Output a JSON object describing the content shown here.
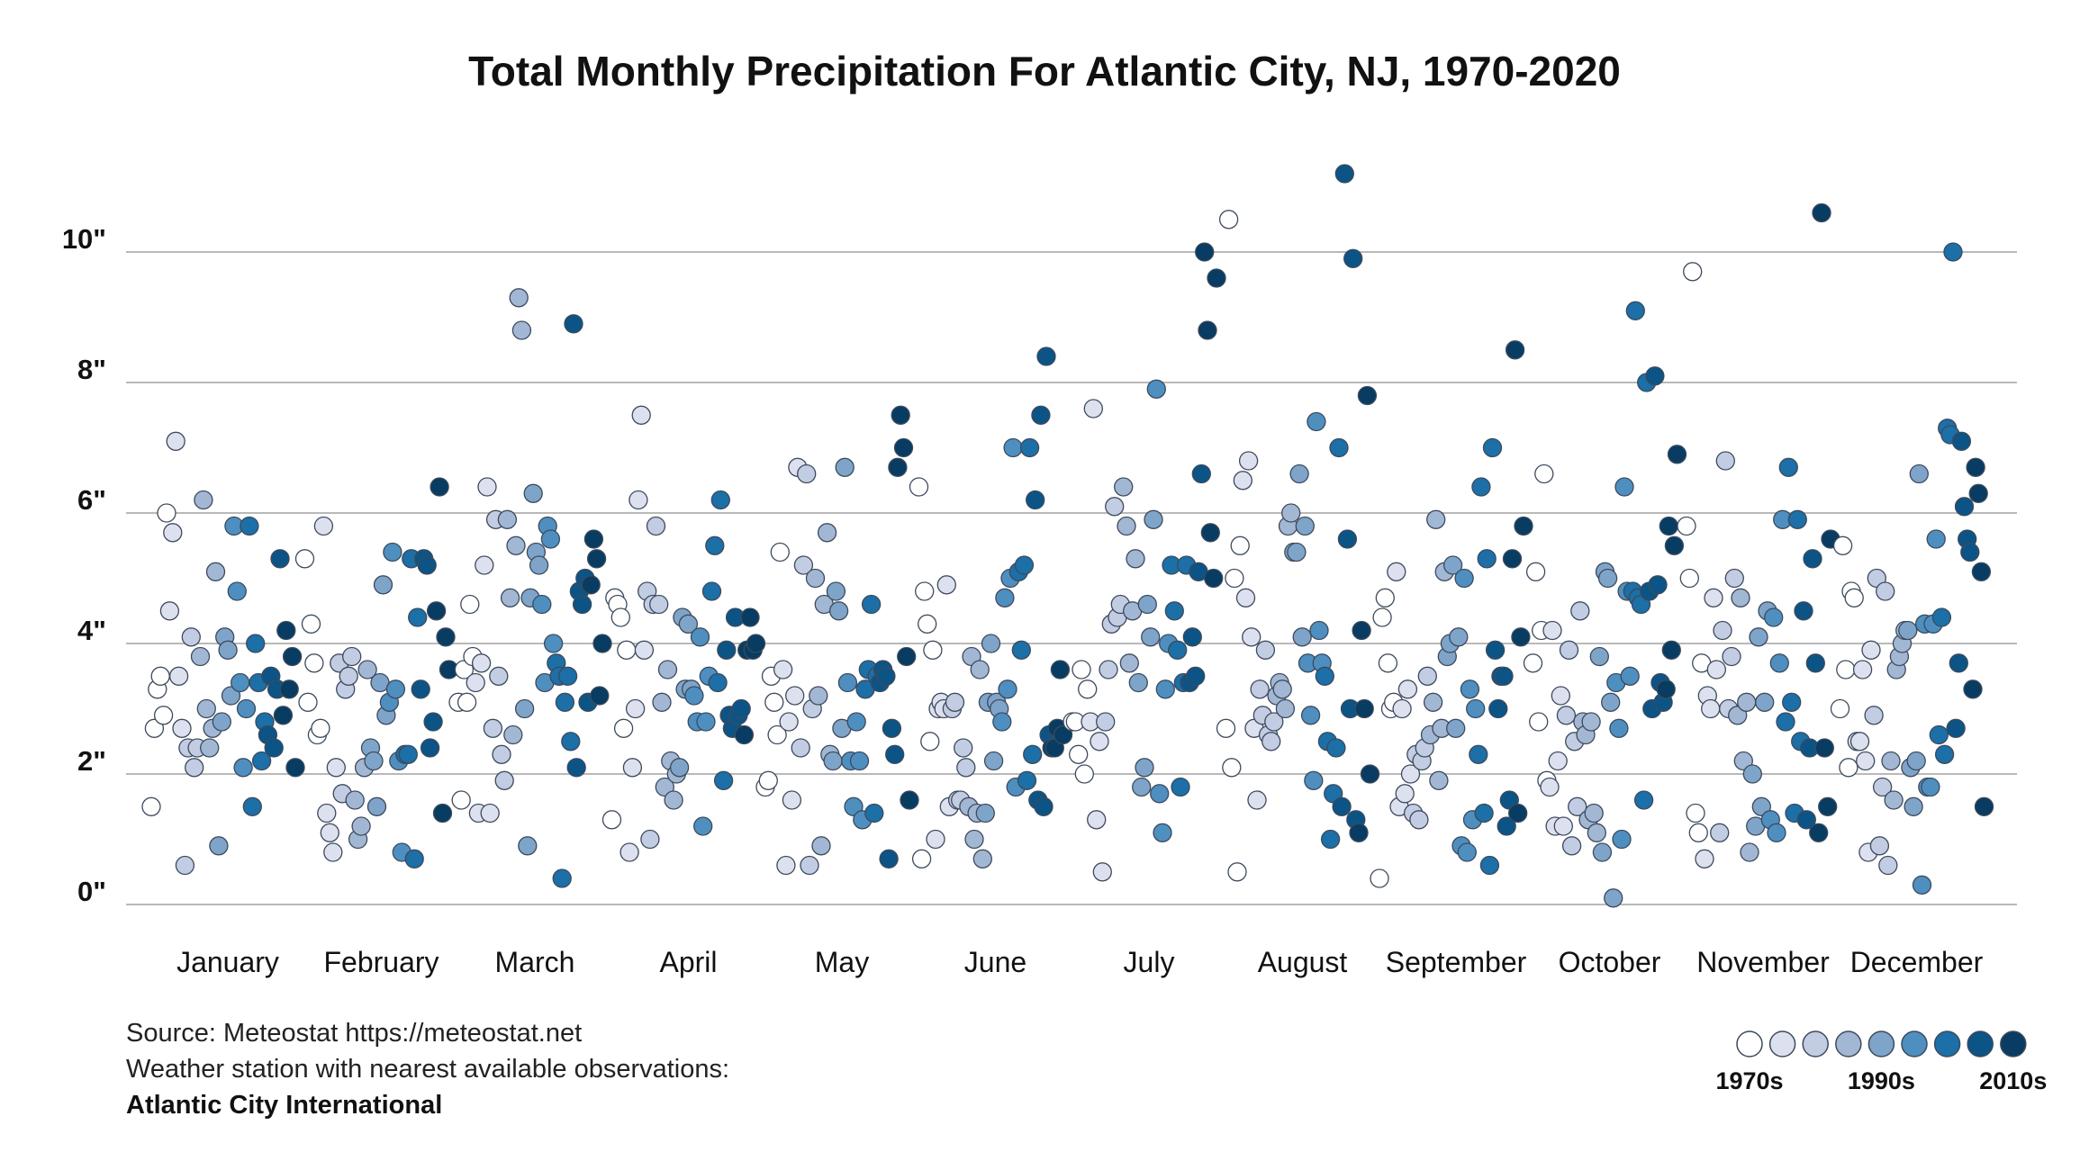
{
  "chart_data": {
    "type": "scatter",
    "title": "Total Monthly Precipitation For Atlantic City, NJ, 1970-2020",
    "xlabel": "",
    "ylabel": "",
    "ylim": [
      0,
      11.5
    ],
    "y_ticks": [
      {
        "value": 0,
        "label": "0\""
      },
      {
        "value": 2,
        "label": "2\""
      },
      {
        "value": 4,
        "label": "4\""
      },
      {
        "value": 6,
        "label": "6\""
      },
      {
        "value": 8,
        "label": "8\""
      },
      {
        "value": 10,
        "label": "10\""
      }
    ],
    "categories": [
      "January",
      "February",
      "March",
      "April",
      "May",
      "June",
      "July",
      "August",
      "September",
      "October",
      "November",
      "December"
    ],
    "decade_colors": [
      "#ffffff",
      "#dde1ef",
      "#c2cce2",
      "#a2b7d4",
      "#7fa4c9",
      "#4e8fc0",
      "#1c6fa7",
      "#0c5486",
      "#083c62"
    ],
    "legend": {
      "labels": [
        "1970s",
        "1990s",
        "2010s"
      ]
    },
    "series": [
      {
        "month": "January",
        "values": [
          1.5,
          2.7,
          3.3,
          3.5,
          2.9,
          6.0,
          4.5,
          5.7,
          7.1,
          3.5,
          2.7,
          0.6,
          2.4,
          4.1,
          2.1,
          2.4,
          3.8,
          6.2,
          3.0,
          2.4,
          2.7,
          5.1,
          0.9,
          2.8,
          4.1,
          3.9,
          3.2,
          5.8,
          4.8,
          3.4,
          2.1,
          3.0,
          5.8,
          1.5,
          4.0,
          3.4,
          2.2,
          2.8,
          2.6,
          3.5,
          2.4,
          3.3,
          5.3,
          2.9,
          4.2,
          3.3,
          3.8,
          2.1
        ]
      },
      {
        "month": "February",
        "values": [
          5.3,
          3.1,
          4.3,
          3.7,
          2.6,
          2.7,
          5.8,
          1.4,
          1.1,
          0.8,
          2.1,
          3.7,
          1.7,
          3.3,
          3.5,
          3.8,
          1.6,
          1.0,
          1.2,
          2.1,
          3.6,
          2.4,
          2.2,
          1.5,
          3.4,
          4.9,
          2.9,
          3.1,
          5.4,
          3.3,
          2.2,
          0.8,
          2.3,
          2.3,
          5.3,
          0.7,
          4.4,
          3.3,
          5.3,
          5.2,
          2.4,
          2.8,
          4.5,
          6.4,
          1.4,
          4.1,
          3.6
        ]
      },
      {
        "month": "March",
        "values": [
          3.1,
          1.6,
          3.6,
          3.1,
          4.6,
          3.8,
          3.4,
          1.4,
          3.7,
          5.2,
          6.4,
          1.4,
          2.7,
          5.9,
          3.5,
          2.3,
          1.9,
          5.9,
          4.7,
          2.6,
          5.5,
          9.3,
          8.8,
          3.0,
          0.9,
          4.7,
          6.3,
          5.4,
          5.2,
          4.6,
          3.4,
          5.8,
          5.6,
          4.0,
          3.7,
          3.5,
          0.4,
          3.1,
          3.5,
          2.5,
          8.9,
          2.1,
          4.8,
          4.6,
          5.0,
          3.1,
          4.9,
          5.6,
          5.3,
          3.2,
          4.0
        ]
      },
      {
        "month": "April",
        "values": [
          1.3,
          4.7,
          4.6,
          4.4,
          2.7,
          3.9,
          0.8,
          2.1,
          3.0,
          6.2,
          7.5,
          3.9,
          4.8,
          1.0,
          4.6,
          5.8,
          4.6,
          3.1,
          1.8,
          3.6,
          2.2,
          1.6,
          2.0,
          2.1,
          4.4,
          3.3,
          4.3,
          3.3,
          3.2,
          2.8,
          4.1,
          1.2,
          2.8,
          3.5,
          4.8,
          5.5,
          3.4,
          6.2,
          1.9,
          3.9,
          2.9,
          2.7,
          4.4,
          2.9,
          3.0,
          2.6,
          3.9,
          4.4,
          3.9,
          4.0
        ]
      },
      {
        "month": "May",
        "values": [
          1.8,
          1.9,
          3.5,
          3.1,
          2.6,
          5.4,
          3.6,
          0.6,
          2.8,
          1.6,
          3.2,
          6.7,
          2.4,
          5.2,
          6.6,
          0.6,
          3.0,
          5.0,
          3.2,
          0.9,
          4.6,
          5.7,
          2.3,
          2.2,
          4.8,
          4.5,
          2.7,
          6.7,
          3.4,
          2.2,
          1.5,
          2.8,
          2.2,
          1.3,
          3.3,
          3.6,
          4.6,
          1.4,
          3.5,
          3.4,
          3.6,
          3.5,
          0.7,
          2.7,
          2.3,
          6.7,
          7.5,
          7.0,
          3.8,
          1.6
        ]
      },
      {
        "month": "June",
        "values": [
          6.4,
          0.7,
          4.8,
          4.3,
          2.5,
          3.9,
          1.0,
          3.0,
          3.1,
          3.0,
          4.9,
          1.5,
          3.0,
          3.1,
          1.6,
          1.6,
          2.4,
          2.1,
          1.5,
          3.8,
          1.0,
          1.4,
          3.6,
          0.7,
          1.4,
          3.1,
          4.0,
          2.2,
          3.1,
          3.0,
          2.8,
          4.7,
          3.3,
          5.0,
          7.0,
          1.8,
          5.1,
          3.9,
          5.2,
          1.9,
          7.0,
          2.3,
          6.2,
          1.6,
          7.5,
          1.5,
          8.4,
          2.6,
          2.4,
          2.4,
          2.7,
          3.6,
          2.6
        ]
      },
      {
        "month": "July",
        "values": [
          2.8,
          2.8,
          2.3,
          3.6,
          2.0,
          3.3,
          2.8,
          7.6,
          1.3,
          2.5,
          0.5,
          2.8,
          3.6,
          4.3,
          6.1,
          4.4,
          4.6,
          6.4,
          5.8,
          3.7,
          4.5,
          5.3,
          3.4,
          1.8,
          2.1,
          4.6,
          4.1,
          5.9,
          7.9,
          1.7,
          1.1,
          3.3,
          4.0,
          5.2,
          4.5,
          3.9,
          1.8,
          3.4,
          5.2,
          3.4,
          4.1,
          3.5,
          5.1,
          6.6,
          10.0,
          8.8,
          5.7,
          5.0,
          9.6
        ]
      },
      {
        "month": "August",
        "values": [
          2.7,
          10.5,
          2.1,
          5.0,
          0.5,
          5.5,
          6.5,
          4.7,
          6.8,
          4.1,
          2.7,
          1.6,
          3.3,
          2.9,
          3.9,
          2.6,
          2.5,
          2.8,
          3.2,
          3.4,
          3.3,
          3.0,
          5.8,
          6.0,
          5.4,
          5.4,
          6.6,
          4.1,
          5.8,
          3.7,
          2.9,
          1.9,
          7.4,
          4.2,
          3.7,
          3.5,
          2.5,
          1.0,
          1.7,
          2.4,
          7.0,
          1.5,
          11.2,
          5.6,
          3.0,
          9.9,
          1.3,
          1.1,
          4.2,
          3.0,
          7.8,
          2.0
        ]
      },
      {
        "month": "September",
        "values": [
          0.4,
          4.4,
          4.7,
          3.7,
          3.0,
          3.1,
          5.1,
          1.5,
          3.0,
          1.7,
          3.3,
          2.0,
          1.4,
          2.3,
          1.3,
          2.2,
          2.4,
          3.5,
          2.6,
          3.1,
          5.9,
          1.9,
          2.7,
          5.1,
          3.8,
          4.0,
          5.2,
          2.7,
          4.1,
          0.9,
          5.0,
          0.8,
          3.3,
          1.3,
          3.0,
          2.3,
          6.4,
          1.4,
          5.3,
          0.6,
          7.0,
          3.9,
          3.0,
          3.5,
          3.5,
          1.2,
          1.6,
          5.3,
          8.5,
          1.4,
          4.1,
          5.8
        ]
      },
      {
        "month": "October",
        "values": [
          3.7,
          5.1,
          2.8,
          4.2,
          6.6,
          1.9,
          1.8,
          4.2,
          1.2,
          2.2,
          3.2,
          1.2,
          2.9,
          3.9,
          0.9,
          2.5,
          1.5,
          4.5,
          2.8,
          2.6,
          1.3,
          2.8,
          1.4,
          1.1,
          3.8,
          0.8,
          5.1,
          5.0,
          3.1,
          0.1,
          3.4,
          2.7,
          1.0,
          6.4,
          4.8,
          3.5,
          4.8,
          9.1,
          4.7,
          4.6,
          1.6,
          8.0,
          4.8,
          3.0,
          8.1,
          4.9,
          3.4,
          3.1,
          3.3,
          5.8,
          3.9,
          5.5,
          6.9
        ]
      },
      {
        "month": "November",
        "values": [
          5.8,
          5.0,
          9.7,
          1.4,
          1.1,
          3.7,
          0.7,
          3.2,
          3.0,
          4.7,
          3.6,
          1.1,
          4.2,
          6.8,
          3.0,
          3.8,
          5.0,
          2.9,
          4.7,
          2.2,
          3.1,
          0.8,
          2.0,
          1.2,
          4.1,
          1.5,
          3.1,
          4.5,
          1.3,
          4.4,
          1.1,
          3.7,
          5.9,
          2.8,
          6.7,
          3.1,
          1.4,
          5.9,
          2.5,
          4.5,
          1.3,
          2.4,
          5.3,
          3.7,
          1.1,
          10.6,
          2.4,
          1.5,
          5.6
        ]
      },
      {
        "month": "December",
        "values": [
          3.0,
          5.5,
          3.6,
          2.1,
          4.8,
          4.7,
          2.5,
          2.5,
          3.6,
          2.2,
          0.8,
          3.9,
          2.9,
          5.0,
          0.9,
          1.8,
          4.8,
          0.6,
          2.2,
          1.6,
          3.6,
          3.8,
          4.0,
          4.2,
          4.2,
          2.1,
          1.5,
          2.2,
          6.6,
          0.3,
          4.3,
          1.8,
          1.8,
          4.3,
          5.6,
          2.6,
          4.4,
          2.3,
          7.3,
          7.2,
          10.0,
          2.7,
          3.7,
          7.1,
          6.1,
          5.6,
          5.4,
          3.3,
          6.7,
          6.3,
          5.1,
          1.5
        ]
      }
    ]
  },
  "source": {
    "line1": "Source: Meteostat https://meteostat.net",
    "line2": "Weather station with nearest available observations:",
    "station": "Atlantic City International"
  }
}
